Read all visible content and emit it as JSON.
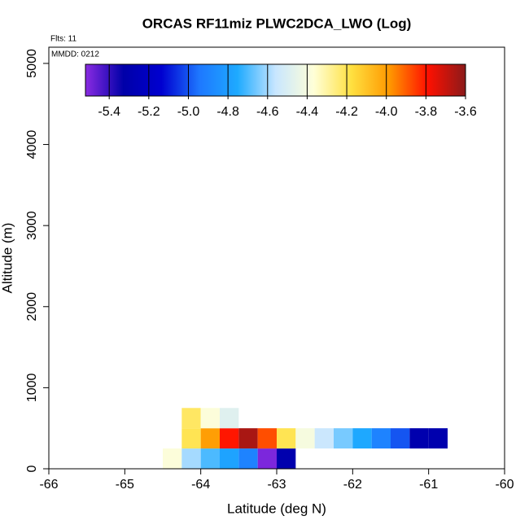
{
  "chart_data": {
    "type": "heatmap",
    "title": "ORCAS RF11miz PLWC2DCA_LWO (Log)",
    "annotations": [
      "Flts: 11",
      "MMDD: 0212"
    ],
    "x_label": "Latitude (deg N)",
    "y_label": "Altitude (m)",
    "xlim": [
      -66,
      -60
    ],
    "xticks": [
      -66,
      -65,
      -64,
      -63,
      -62,
      -61,
      -60
    ],
    "ylim": [
      0,
      5200
    ],
    "yticks": [
      0,
      1000,
      2000,
      3000,
      4000,
      5000
    ],
    "clim": [
      -5.52,
      -3.6
    ],
    "cticks": [
      -5.4,
      -5.2,
      {
        "value": -5,
        "label": "-5.0"
      },
      -4.8,
      -4.6,
      -4.4,
      -4.2,
      {
        "value": -4,
        "label": "-4.0"
      },
      -3.8,
      -3.6
    ],
    "colormap": [
      "#8a2be2",
      "#0000a8",
      "#0000d0",
      "#1e78ff",
      "#1eaaff",
      "#c8e6ff",
      "#ffffd8",
      "#ffe040",
      "#ff9800",
      "#ff1000",
      "#8b1a1a"
    ],
    "cells": [
      {
        "x": [
          -64.5,
          -64.25
        ],
        "y": [
          0,
          250
        ],
        "value": -4.38
      },
      {
        "x": [
          -64.25,
          -64
        ],
        "y": [
          0,
          250
        ],
        "value": -4.6
      },
      {
        "x": [
          -64,
          -63.75
        ],
        "y": [
          0,
          250
        ],
        "value": -4.7
      },
      {
        "x": [
          -63.75,
          -63.5
        ],
        "y": [
          0,
          250
        ],
        "value": -4.78
      },
      {
        "x": [
          -63.5,
          -63.25
        ],
        "y": [
          0,
          250
        ],
        "value": -4.9
      },
      {
        "x": [
          -63.25,
          -63
        ],
        "y": [
          0,
          250
        ],
        "value": -5.5
      },
      {
        "x": [
          -63,
          -62.75
        ],
        "y": [
          0,
          250
        ],
        "value": -5.3
      },
      {
        "x": [
          -64.25,
          -64
        ],
        "y": [
          250,
          500
        ],
        "value": -4.2
      },
      {
        "x": [
          -64,
          -63.75
        ],
        "y": [
          250,
          500
        ],
        "value": -4.0
      },
      {
        "x": [
          -63.75,
          -63.5
        ],
        "y": [
          250,
          500
        ],
        "value": -3.8
      },
      {
        "x": [
          -63.5,
          -63.25
        ],
        "y": [
          250,
          500
        ],
        "value": -3.65
      },
      {
        "x": [
          -63.25,
          -63
        ],
        "y": [
          250,
          500
        ],
        "value": -3.88
      },
      {
        "x": [
          -63,
          -62.75
        ],
        "y": [
          250,
          500
        ],
        "value": -4.2
      },
      {
        "x": [
          -62.75,
          -62.5
        ],
        "y": [
          250,
          500
        ],
        "value": -4.4
      },
      {
        "x": [
          -62.5,
          -62.25
        ],
        "y": [
          250,
          500
        ],
        "value": -4.55
      },
      {
        "x": [
          -62.25,
          -62
        ],
        "y": [
          250,
          500
        ],
        "value": -4.65
      },
      {
        "x": [
          -62,
          -61.75
        ],
        "y": [
          250,
          500
        ],
        "value": -4.76
      },
      {
        "x": [
          -61.75,
          -61.5
        ],
        "y": [
          250,
          500
        ],
        "value": -4.9
      },
      {
        "x": [
          -61.5,
          -61.25
        ],
        "y": [
          250,
          500
        ],
        "value": -5.0
      },
      {
        "x": [
          -61.25,
          -61
        ],
        "y": [
          250,
          500
        ],
        "value": -5.3
      },
      {
        "x": [
          -61,
          -60.75
        ],
        "y": [
          250,
          500
        ],
        "value": -5.3
      },
      {
        "x": [
          -64.25,
          -64
        ],
        "y": [
          500,
          750
        ],
        "value": -4.22
      },
      {
        "x": [
          -64,
          -63.75
        ],
        "y": [
          500,
          750
        ],
        "value": -4.38
      },
      {
        "x": [
          -63.75,
          -63.5
        ],
        "y": [
          500,
          750
        ],
        "value": -4.48
      }
    ]
  }
}
